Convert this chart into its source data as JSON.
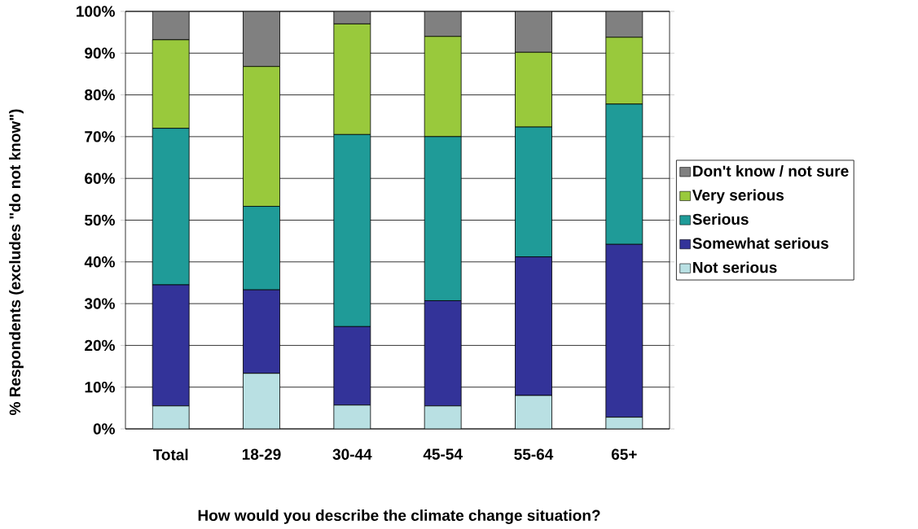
{
  "chart_data": {
    "type": "bar",
    "stacked": true,
    "categories": [
      "Total",
      "18-29",
      "30-44",
      "45-54",
      "55-64",
      "65+"
    ],
    "series": [
      {
        "name": "Not serious",
        "color": "#b9e0e3",
        "values": [
          5.5,
          13.3,
          5.7,
          5.5,
          8.0,
          2.8
        ]
      },
      {
        "name": "Somewhat serious",
        "color": "#333399",
        "values": [
          29.0,
          20.0,
          18.8,
          25.2,
          33.2,
          41.4
        ]
      },
      {
        "name": "Serious",
        "color": "#1f9b98",
        "values": [
          37.5,
          20.0,
          46.0,
          39.3,
          31.1,
          33.6
        ]
      },
      {
        "name": "Very serious",
        "color": "#99c93c",
        "values": [
          21.2,
          33.5,
          26.5,
          24.0,
          17.9,
          16.0
        ]
      },
      {
        "name": "Don't know / not sure",
        "color": "#808080",
        "values": [
          6.8,
          13.2,
          3.0,
          6.0,
          9.8,
          6.2
        ]
      }
    ],
    "ylim": [
      0,
      100
    ],
    "yticks": [
      {
        "value": 0,
        "label": "0%"
      },
      {
        "value": 10,
        "label": "10%"
      },
      {
        "value": 20,
        "label": "20%"
      },
      {
        "value": 30,
        "label": "30%"
      },
      {
        "value": 40,
        "label": "40%"
      },
      {
        "value": 50,
        "label": "50%"
      },
      {
        "value": 60,
        "label": "60%"
      },
      {
        "value": 70,
        "label": "70%"
      },
      {
        "value": 80,
        "label": "80%"
      },
      {
        "value": 90,
        "label": "90%"
      },
      {
        "value": 100,
        "label": "100%"
      }
    ],
    "grid": "y",
    "legend": "right",
    "xlabel": "How would you describe the climate change situation?",
    "ylabel": "% Respondents (excludes \"do not know\")"
  }
}
